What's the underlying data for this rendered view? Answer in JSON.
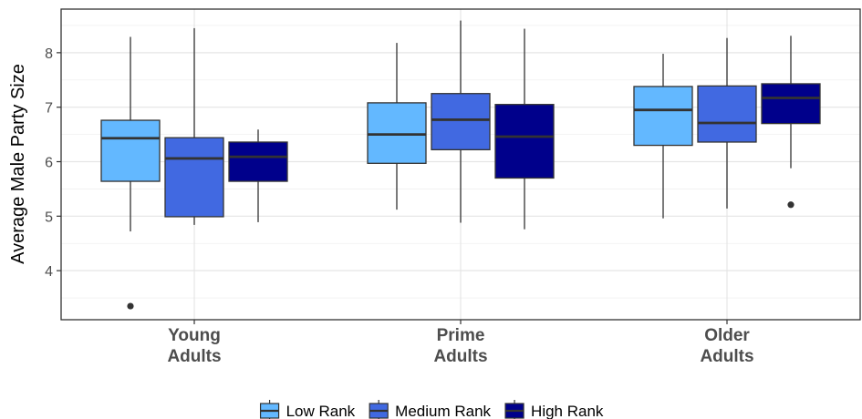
{
  "chart_data": {
    "type": "boxplot",
    "title": "",
    "xlabel": "",
    "ylabel": "Average Male Party Size",
    "ylim": [
      3.1,
      8.8
    ],
    "yticks": [
      4,
      5,
      6,
      7,
      8
    ],
    "grid": true,
    "legend_position": "bottom",
    "categories": [
      {
        "line1": "Young",
        "line2": "Adults"
      },
      {
        "line1": "Prime",
        "line2": "Adults"
      },
      {
        "line1": "Older",
        "line2": "Adults"
      }
    ],
    "series": [
      {
        "name": "Low Rank",
        "color": "#63b8ff",
        "boxes": [
          {
            "min": 4.72,
            "q1": 5.64,
            "median": 6.43,
            "q3": 6.76,
            "max": 8.29,
            "outliers": [
              3.35
            ]
          },
          {
            "min": 5.12,
            "q1": 5.97,
            "median": 6.5,
            "q3": 7.08,
            "max": 8.18,
            "outliers": []
          },
          {
            "min": 4.96,
            "q1": 6.3,
            "median": 6.95,
            "q3": 7.38,
            "max": 7.98,
            "outliers": []
          }
        ]
      },
      {
        "name": "Medium Rank",
        "color": "#4169e1",
        "boxes": [
          {
            "min": 4.84,
            "q1": 4.99,
            "median": 6.06,
            "q3": 6.44,
            "max": 8.45,
            "outliers": []
          },
          {
            "min": 4.88,
            "q1": 6.22,
            "median": 6.77,
            "q3": 7.25,
            "max": 8.59,
            "outliers": []
          },
          {
            "min": 5.14,
            "q1": 6.36,
            "median": 6.71,
            "q3": 7.39,
            "max": 8.27,
            "outliers": []
          }
        ]
      },
      {
        "name": "High Rank",
        "color": "#00008b",
        "boxes": [
          {
            "min": 4.89,
            "q1": 5.64,
            "median": 6.09,
            "q3": 6.36,
            "max": 6.59,
            "outliers": []
          },
          {
            "min": 4.76,
            "q1": 5.7,
            "median": 6.46,
            "q3": 7.05,
            "max": 8.44,
            "outliers": []
          },
          {
            "min": 5.88,
            "q1": 6.7,
            "median": 7.17,
            "q3": 7.43,
            "max": 8.31,
            "outliers": [
              5.21
            ]
          }
        ]
      }
    ]
  }
}
